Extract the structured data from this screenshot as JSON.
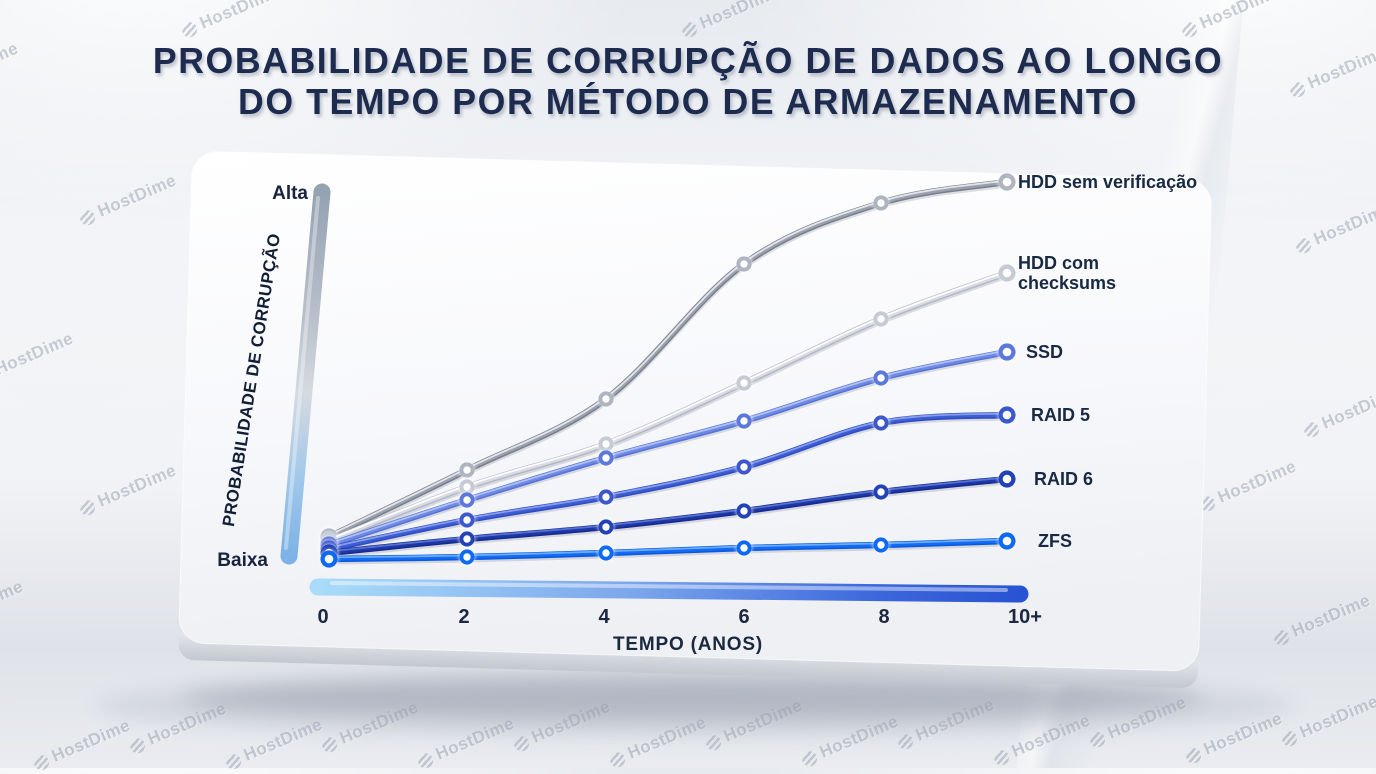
{
  "title": {
    "line1": "PROBABILIDADE DE CORRUPÇÃO DE DADOS AO LONGO",
    "line2": "DO TEMPO POR MÉTODO DE ARMAZENAMENTO"
  },
  "watermark": {
    "text": "HostDime",
    "icon": "hostdime-sphere-icon"
  },
  "colors": {
    "title_text": "#1d2b4f",
    "label_text": "#182944",
    "y_axis_gradient": [
      "#95a2b2",
      "#d5dae1",
      "#7db2e6"
    ],
    "x_axis_gradient": [
      "#a9dcf8",
      "#2853d2"
    ]
  },
  "chart_data": {
    "type": "line",
    "title": "Probabilidade de corrupção de dados ao longo do tempo por método de armazenamento",
    "xlabel": "TEMPO (ANOS)",
    "ylabel": "PROBABILIDADE DE CORRUPÇÃO",
    "y_axis_top_label": "Alta",
    "y_axis_bottom_label": "Baixa",
    "x": [
      0,
      2,
      4,
      6,
      8,
      10
    ],
    "x_tick_labels": [
      "0",
      "2",
      "4",
      "6",
      "8",
      "10+"
    ],
    "y_range": [
      "Baixa (0.0)",
      "Alta (1.0)"
    ],
    "grid": false,
    "legend_position": "right",
    "series": [
      {
        "name": "HDD sem verificação",
        "values": [
          0.061,
          0.238,
          0.426,
          0.783,
          0.944,
          1.0
        ],
        "color": "#787e8c",
        "mid": "#9aa0ac",
        "highlight": "#e6e8ed",
        "marker_ring": "#aeb4c0"
      },
      {
        "name": "HDD com checksums",
        "values": [
          0.05,
          0.193,
          0.307,
          0.468,
          0.638,
          0.759
        ],
        "color": "#b3b8c4",
        "mid": "#d8dbe3",
        "highlight": "#ffffff",
        "marker_ring": "#c6cad5"
      },
      {
        "name": "SSD",
        "values": [
          0.04,
          0.159,
          0.27,
          0.368,
          0.481,
          0.55
        ],
        "color": "#5572d6",
        "mid": "#6f8ae2",
        "highlight": "#b3c3f5",
        "marker_ring": "#5b78da"
      },
      {
        "name": "RAID 5",
        "values": [
          0.029,
          0.106,
          0.167,
          0.246,
          0.362,
          0.384
        ],
        "color": "#2f4cc4",
        "mid": "#3f5dd2",
        "highlight": "#8ba1ee",
        "marker_ring": "#3a58cc"
      },
      {
        "name": "RAID 6",
        "values": [
          0.019,
          0.056,
          0.087,
          0.13,
          0.18,
          0.214
        ],
        "color": "#142a8e",
        "mid": "#1e37a4",
        "highlight": "#5a74d6",
        "marker_ring": "#2443b8"
      },
      {
        "name": "ZFS",
        "values": [
          0.003,
          0.008,
          0.019,
          0.032,
          0.04,
          0.05
        ],
        "color": "#0a58e0",
        "mid": "#146bf2",
        "highlight": "#6fb0fc",
        "marker_ring": "#0f6bf5"
      }
    ]
  }
}
